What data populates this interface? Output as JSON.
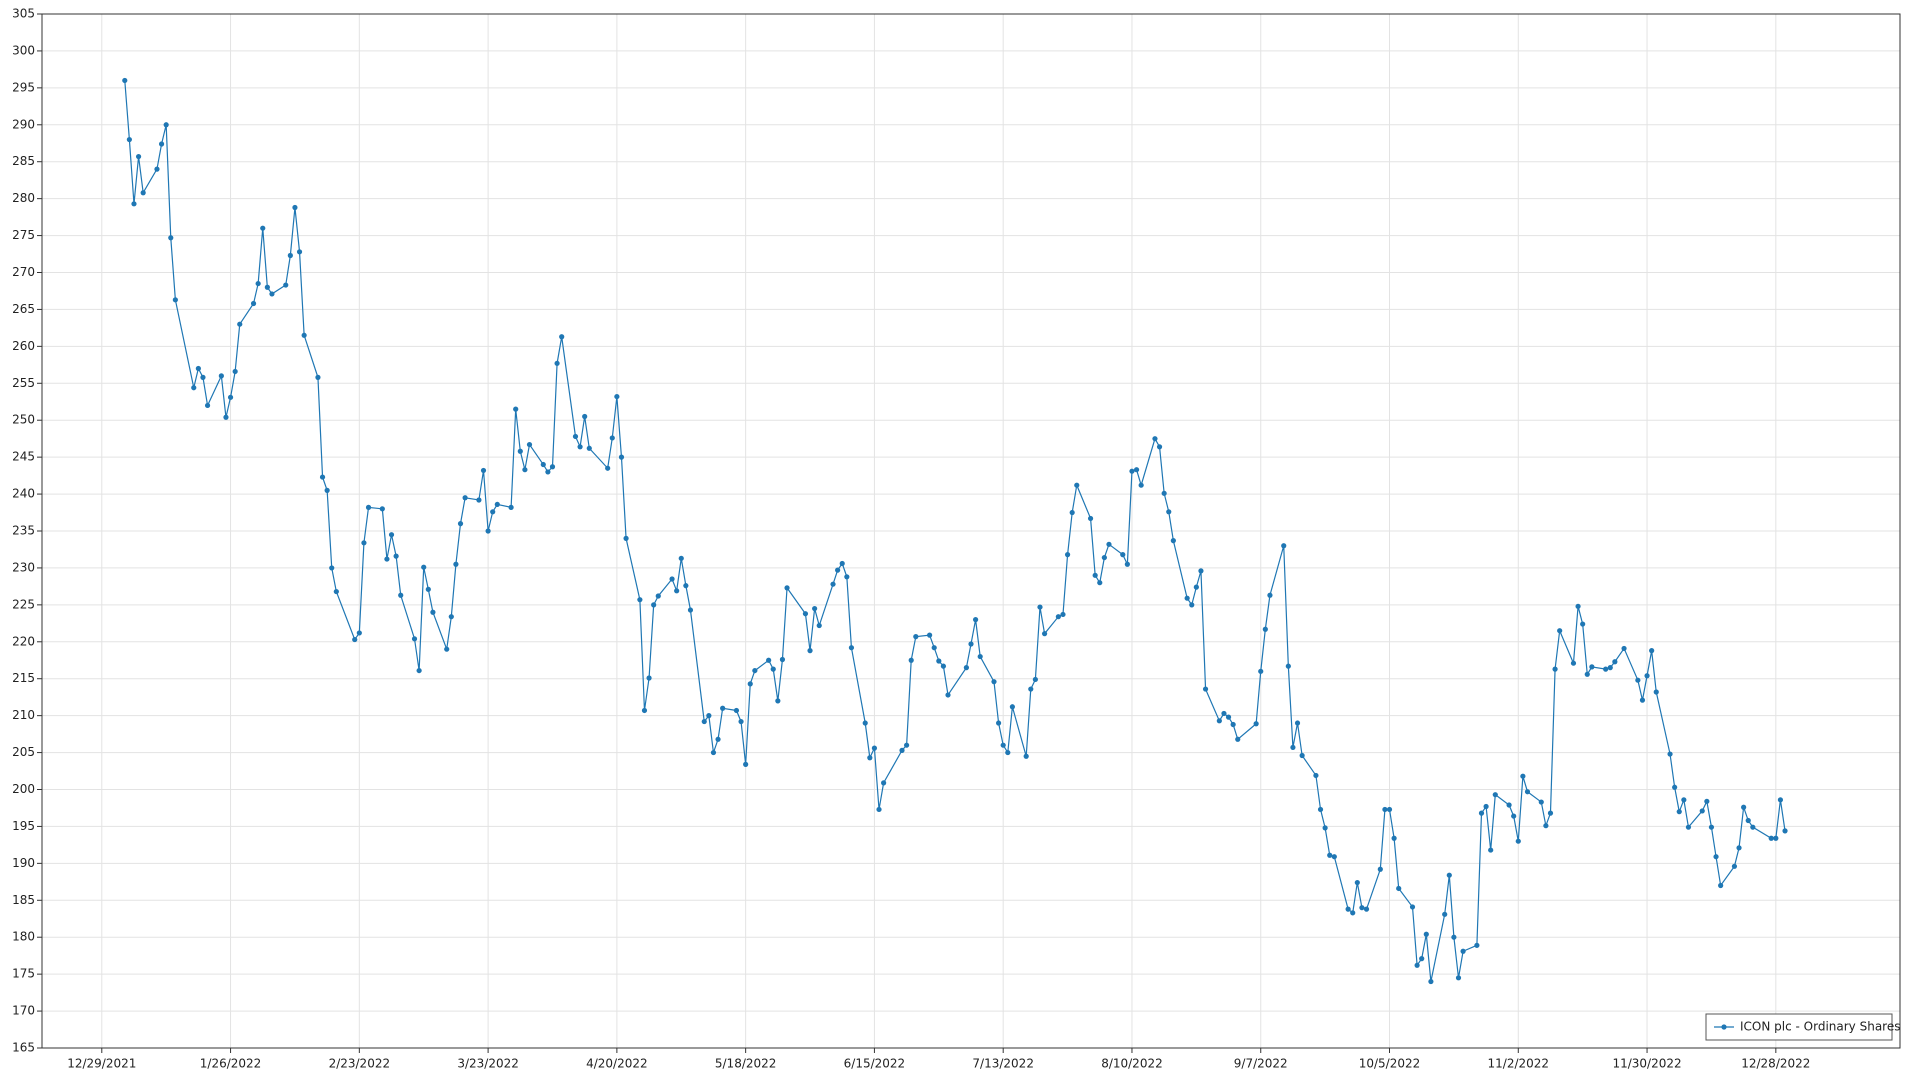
{
  "chart_data": {
    "type": "line",
    "grid": true,
    "legend": "bottom-right",
    "xlim": [
      "12/16/2021",
      "1/24/2023"
    ],
    "xticks": [
      "12/29/2021",
      "1/26/2022",
      "2/23/2022",
      "3/23/2022",
      "4/20/2022",
      "5/18/2022",
      "6/15/2022",
      "7/13/2022",
      "8/10/2022",
      "9/7/2022",
      "10/5/2022",
      "11/2/2022",
      "11/30/2022",
      "12/28/2022"
    ],
    "ylim": [
      165,
      305
    ],
    "yticks": [
      165,
      170,
      175,
      180,
      185,
      190,
      195,
      200,
      205,
      210,
      215,
      220,
      225,
      230,
      235,
      240,
      245,
      250,
      255,
      260,
      265,
      270,
      275,
      280,
      285,
      290,
      295,
      300,
      305
    ],
    "series": [
      {
        "name": "ICON plc - Ordinary Shares",
        "color": "#1f77b4",
        "x": [
          "1/3/2022",
          "1/4/2022",
          "1/5/2022",
          "1/6/2022",
          "1/7/2022",
          "1/10/2022",
          "1/11/2022",
          "1/12/2022",
          "1/13/2022",
          "1/14/2022",
          "1/18/2022",
          "1/19/2022",
          "1/20/2022",
          "1/21/2022",
          "1/24/2022",
          "1/25/2022",
          "1/26/2022",
          "1/27/2022",
          "1/28/2022",
          "1/31/2022",
          "2/1/2022",
          "2/2/2022",
          "2/3/2022",
          "2/4/2022",
          "2/7/2022",
          "2/8/2022",
          "2/9/2022",
          "2/10/2022",
          "2/11/2022",
          "2/14/2022",
          "2/15/2022",
          "2/16/2022",
          "2/17/2022",
          "2/18/2022",
          "2/22/2022",
          "2/23/2022",
          "2/24/2022",
          "2/25/2022",
          "2/28/2022",
          "3/1/2022",
          "3/2/2022",
          "3/3/2022",
          "3/4/2022",
          "3/7/2022",
          "3/8/2022",
          "3/9/2022",
          "3/10/2022",
          "3/11/2022",
          "3/14/2022",
          "3/15/2022",
          "3/16/2022",
          "3/17/2022",
          "3/18/2022",
          "3/21/2022",
          "3/22/2022",
          "3/23/2022",
          "3/24/2022",
          "3/25/2022",
          "3/28/2022",
          "3/29/2022",
          "3/30/2022",
          "3/31/2022",
          "4/1/2022",
          "4/4/2022",
          "4/5/2022",
          "4/6/2022",
          "4/7/2022",
          "4/8/2022",
          "4/11/2022",
          "4/12/2022",
          "4/13/2022",
          "4/14/2022",
          "4/18/2022",
          "4/19/2022",
          "4/20/2022",
          "4/21/2022",
          "4/22/2022",
          "4/25/2022",
          "4/26/2022",
          "4/27/2022",
          "4/28/2022",
          "4/29/2022",
          "5/2/2022",
          "5/3/2022",
          "5/4/2022",
          "5/5/2022",
          "5/6/2022",
          "5/9/2022",
          "5/10/2022",
          "5/11/2022",
          "5/12/2022",
          "5/13/2022",
          "5/16/2022",
          "5/17/2022",
          "5/18/2022",
          "5/19/2022",
          "5/20/2022",
          "5/23/2022",
          "5/24/2022",
          "5/25/2022",
          "5/26/2022",
          "5/27/2022",
          "5/31/2022",
          "6/1/2022",
          "6/2/2022",
          "6/3/2022",
          "6/6/2022",
          "6/7/2022",
          "6/8/2022",
          "6/9/2022",
          "6/10/2022",
          "6/13/2022",
          "6/14/2022",
          "6/15/2022",
          "6/16/2022",
          "6/17/2022",
          "6/21/2022",
          "6/22/2022",
          "6/23/2022",
          "6/24/2022",
          "6/27/2022",
          "6/28/2022",
          "6/29/2022",
          "6/30/2022",
          "7/1/2022",
          "7/5/2022",
          "7/6/2022",
          "7/7/2022",
          "7/8/2022",
          "7/11/2022",
          "7/12/2022",
          "7/13/2022",
          "7/14/2022",
          "7/15/2022",
          "7/18/2022",
          "7/19/2022",
          "7/20/2022",
          "7/21/2022",
          "7/22/2022",
          "7/25/2022",
          "7/26/2022",
          "7/27/2022",
          "7/28/2022",
          "7/29/2022",
          "8/1/2022",
          "8/2/2022",
          "8/3/2022",
          "8/4/2022",
          "8/5/2022",
          "8/8/2022",
          "8/9/2022",
          "8/10/2022",
          "8/11/2022",
          "8/12/2022",
          "8/15/2022",
          "8/16/2022",
          "8/17/2022",
          "8/18/2022",
          "8/19/2022",
          "8/22/2022",
          "8/23/2022",
          "8/24/2022",
          "8/25/2022",
          "8/26/2022",
          "8/29/2022",
          "8/30/2022",
          "8/31/2022",
          "9/1/2022",
          "9/2/2022",
          "9/6/2022",
          "9/7/2022",
          "9/8/2022",
          "9/9/2022",
          "9/12/2022",
          "9/13/2022",
          "9/14/2022",
          "9/15/2022",
          "9/16/2022",
          "9/19/2022",
          "9/20/2022",
          "9/21/2022",
          "9/22/2022",
          "9/23/2022",
          "9/26/2022",
          "9/27/2022",
          "9/28/2022",
          "9/29/2022",
          "9/30/2022",
          "10/3/2022",
          "10/4/2022",
          "10/5/2022",
          "10/6/2022",
          "10/7/2022",
          "10/10/2022",
          "10/11/2022",
          "10/12/2022",
          "10/13/2022",
          "10/14/2022",
          "10/17/2022",
          "10/18/2022",
          "10/19/2022",
          "10/20/2022",
          "10/21/2022",
          "10/24/2022",
          "10/25/2022",
          "10/26/2022",
          "10/27/2022",
          "10/28/2022",
          "10/31/2022",
          "11/1/2022",
          "11/2/2022",
          "11/3/2022",
          "11/4/2022",
          "11/7/2022",
          "11/8/2022",
          "11/9/2022",
          "11/10/2022",
          "11/11/2022",
          "11/14/2022",
          "11/15/2022",
          "11/16/2022",
          "11/17/2022",
          "11/18/2022",
          "11/21/2022",
          "11/22/2022",
          "11/23/2022",
          "11/25/2022",
          "11/28/2022",
          "11/29/2022",
          "11/30/2022",
          "12/1/2022",
          "12/2/2022",
          "12/5/2022",
          "12/6/2022",
          "12/7/2022",
          "12/8/2022",
          "12/9/2022",
          "12/12/2022",
          "12/13/2022",
          "12/14/2022",
          "12/15/2022",
          "12/16/2022",
          "12/19/2022",
          "12/20/2022",
          "12/21/2022",
          "12/22/2022",
          "12/23/2022",
          "12/27/2022",
          "12/28/2022",
          "12/29/2022",
          "12/30/2022"
        ],
        "values": [
          296,
          288,
          279.3,
          285.7,
          280.8,
          284,
          287.4,
          290,
          274.7,
          266.3,
          254.4,
          257,
          255.8,
          252,
          256,
          250.4,
          253.1,
          256.6,
          263,
          265.8,
          268.5,
          276,
          268,
          267.1,
          268.3,
          272.3,
          278.8,
          272.8,
          261.5,
          255.8,
          242.3,
          240.5,
          230,
          226.8,
          220.3,
          221.2,
          233.4,
          238.2,
          238,
          231.2,
          234.5,
          231.6,
          226.3,
          220.4,
          216.1,
          230.1,
          227.1,
          224,
          219,
          223.4,
          230.5,
          236,
          239.5,
          239.2,
          243.2,
          235,
          237.6,
          238.6,
          238.2,
          251.5,
          245.8,
          243.3,
          246.7,
          244,
          243,
          243.7,
          257.7,
          261.3,
          247.8,
          246.4,
          250.5,
          246.2,
          243.5,
          247.6,
          253.2,
          245,
          234,
          225.7,
          210.7,
          215.1,
          225,
          226.2,
          228.5,
          226.9,
          231.3,
          227.6,
          224.3,
          209.2,
          210,
          205,
          206.8,
          211,
          210.7,
          209.2,
          203.4,
          214.3,
          216.1,
          217.5,
          216.3,
          212,
          217.6,
          227.3,
          223.8,
          218.8,
          224.5,
          222.2,
          227.8,
          229.7,
          230.6,
          228.8,
          219.2,
          209,
          204.3,
          205.6,
          197.3,
          200.9,
          205.3,
          206,
          217.5,
          220.7,
          220.9,
          219.2,
          217.4,
          216.7,
          212.8,
          216.5,
          219.7,
          223,
          218,
          214.6,
          209,
          206,
          205,
          211.2,
          204.5,
          213.6,
          214.9,
          224.7,
          221.1,
          223.4,
          223.7,
          231.8,
          237.5,
          241.2,
          236.7,
          229,
          228,
          231.4,
          233.2,
          231.8,
          230.5,
          243.1,
          243.3,
          241.2,
          247.5,
          246.4,
          240.1,
          237.6,
          233.7,
          225.9,
          225,
          227.4,
          229.6,
          213.6,
          209.3,
          210.3,
          209.8,
          208.8,
          206.8,
          208.9,
          216,
          221.7,
          226.3,
          233,
          216.7,
          205.7,
          209,
          204.6,
          201.9,
          197.3,
          194.8,
          191.1,
          190.9,
          183.8,
          183.3,
          187.4,
          184,
          183.8,
          189.2,
          197.3,
          197.3,
          193.4,
          186.6,
          184.1,
          176.2,
          177.1,
          180.4,
          174,
          183.1,
          188.4,
          180,
          174.5,
          178.1,
          178.9,
          196.8,
          197.7,
          191.8,
          199.3,
          197.9,
          196.4,
          193,
          201.8,
          199.7,
          198.3,
          195.1,
          196.8,
          216.3,
          221.5,
          217.1,
          224.8,
          222.4,
          215.6,
          216.6,
          216.3,
          216.5,
          217.3,
          219.1,
          214.8,
          212.1,
          215.4,
          218.8,
          213.2,
          204.8,
          200.3,
          197,
          198.6,
          194.9,
          197.1,
          198.4,
          194.9,
          190.9,
          187,
          189.6,
          192.1,
          197.6,
          195.8,
          194.9,
          193.4,
          193.4,
          198.6,
          194.4
        ]
      }
    ]
  }
}
